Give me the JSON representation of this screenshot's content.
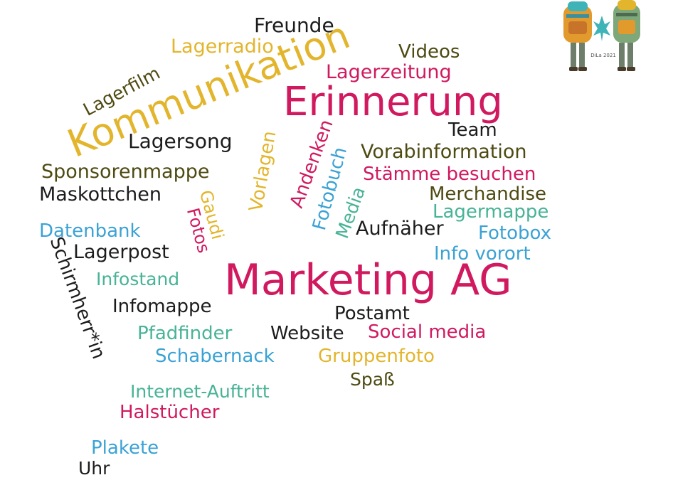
{
  "colors": {
    "pink": "#d0195f",
    "yellow": "#e3b52c",
    "olive": "#4e4a12",
    "teal": "#48b396",
    "blue": "#3aa2d4",
    "black": "#1c1c1c"
  },
  "words": [
    {
      "id": "freunde",
      "text": "Freunde",
      "color": "black"
    },
    {
      "id": "lagerradio",
      "text": "Lagerradio",
      "color": "yellow"
    },
    {
      "id": "videos",
      "text": "Videos",
      "color": "olive"
    },
    {
      "id": "lagerzeitung",
      "text": "Lagerzeitung",
      "color": "pink"
    },
    {
      "id": "kommunikation",
      "text": "Kommunikation",
      "color": "yellow"
    },
    {
      "id": "lagerfilm",
      "text": "Lagerfilm",
      "color": "olive"
    },
    {
      "id": "erinnerung",
      "text": "Erinnerung",
      "color": "pink"
    },
    {
      "id": "team",
      "text": "Team",
      "color": "black"
    },
    {
      "id": "lagersong",
      "text": "Lagersong",
      "color": "black"
    },
    {
      "id": "vorlagen",
      "text": "Vorlagen",
      "color": "yellow"
    },
    {
      "id": "andenken",
      "text": "Andenken",
      "color": "pink"
    },
    {
      "id": "fotobuch",
      "text": "Fotobuch",
      "color": "blue"
    },
    {
      "id": "vorabinformation",
      "text": "Vorabinformation",
      "color": "olive"
    },
    {
      "id": "staemme",
      "text": "Stämme besuchen",
      "color": "pink"
    },
    {
      "id": "sponsorenmappe",
      "text": "Sponsorenmappe",
      "color": "olive"
    },
    {
      "id": "maskottchen",
      "text": "Maskottchen",
      "color": "black"
    },
    {
      "id": "media",
      "text": "Media",
      "color": "teal"
    },
    {
      "id": "merchandise",
      "text": "Merchandise",
      "color": "olive"
    },
    {
      "id": "gaudi",
      "text": "Gaudi",
      "color": "yellow"
    },
    {
      "id": "fotos",
      "text": "Fotos",
      "color": "pink"
    },
    {
      "id": "lagermappe",
      "text": "Lagermappe",
      "color": "teal"
    },
    {
      "id": "datenbank",
      "text": "Datenbank",
      "color": "blue"
    },
    {
      "id": "aufnaeher",
      "text": "Aufnäher",
      "color": "black"
    },
    {
      "id": "fotobox",
      "text": "Fotobox",
      "color": "blue"
    },
    {
      "id": "lagerpost",
      "text": "Lagerpost",
      "color": "black"
    },
    {
      "id": "schirmherr",
      "text": "Schirmherr*in",
      "color": "black"
    },
    {
      "id": "infovorort",
      "text": "Info vorort",
      "color": "blue"
    },
    {
      "id": "infostand",
      "text": "Infostand",
      "color": "teal"
    },
    {
      "id": "marketing",
      "text": "Marketing AG",
      "color": "pink"
    },
    {
      "id": "infomappe",
      "text": "Infomappe",
      "color": "black"
    },
    {
      "id": "postamt",
      "text": "Postamt",
      "color": "black"
    },
    {
      "id": "pfadfinder",
      "text": "Pfadfinder",
      "color": "teal"
    },
    {
      "id": "website",
      "text": "Website",
      "color": "black"
    },
    {
      "id": "socialmedia",
      "text": "Social media",
      "color": "pink"
    },
    {
      "id": "schabernack",
      "text": "Schabernack",
      "color": "blue"
    },
    {
      "id": "gruppenfoto",
      "text": "Gruppenfoto",
      "color": "yellow"
    },
    {
      "id": "spass",
      "text": "Spaß",
      "color": "olive"
    },
    {
      "id": "internet",
      "text": "Internet-Auftritt",
      "color": "teal"
    },
    {
      "id": "halstuecher",
      "text": "Halstücher",
      "color": "pink"
    },
    {
      "id": "plakete",
      "text": "Plakete",
      "color": "blue"
    },
    {
      "id": "uhr",
      "text": "Uhr",
      "color": "black"
    }
  ],
  "logo": {
    "year_text": "DiLa 2021"
  }
}
